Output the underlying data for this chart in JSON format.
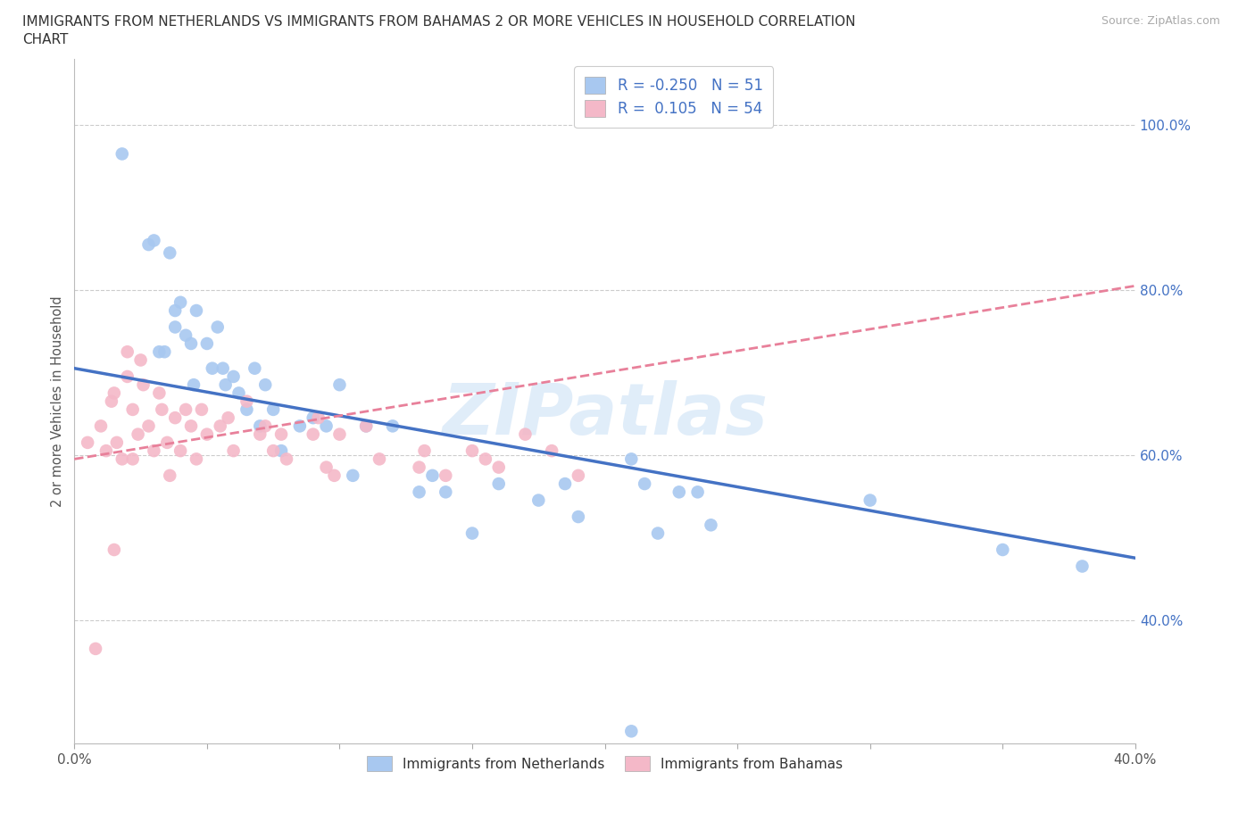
{
  "title_line1": "IMMIGRANTS FROM NETHERLANDS VS IMMIGRANTS FROM BAHAMAS 2 OR MORE VEHICLES IN HOUSEHOLD CORRELATION",
  "title_line2": "CHART",
  "source": "Source: ZipAtlas.com",
  "ylabel": "2 or more Vehicles in Household",
  "watermark": "ZIPatlas",
  "legend_netherlands": "Immigrants from Netherlands",
  "legend_bahamas": "Immigrants from Bahamas",
  "R_netherlands": -0.25,
  "N_netherlands": 51,
  "R_bahamas": 0.105,
  "N_bahamas": 54,
  "color_netherlands": "#A8C8F0",
  "color_bahamas": "#F4B8C8",
  "line_netherlands": "#4472C4",
  "line_bahamas": "#E8809A",
  "x_min": 0.0,
  "x_max": 0.4,
  "y_min": 0.25,
  "y_max": 1.08,
  "nl_line_x0": 0.0,
  "nl_line_y0": 0.705,
  "nl_line_x1": 0.4,
  "nl_line_y1": 0.475,
  "bh_line_x0": 0.0,
  "bh_line_y0": 0.595,
  "bh_line_x1": 0.4,
  "bh_line_y1": 0.805,
  "netherlands_x": [
    0.018,
    0.028,
    0.03,
    0.032,
    0.034,
    0.036,
    0.038,
    0.038,
    0.04,
    0.042,
    0.044,
    0.045,
    0.046,
    0.05,
    0.052,
    0.054,
    0.056,
    0.057,
    0.06,
    0.062,
    0.065,
    0.068,
    0.07,
    0.072,
    0.075,
    0.078,
    0.085,
    0.09,
    0.095,
    0.1,
    0.105,
    0.11,
    0.12,
    0.13,
    0.135,
    0.14,
    0.15,
    0.16,
    0.175,
    0.185,
    0.19,
    0.21,
    0.215,
    0.22,
    0.228,
    0.235,
    0.24,
    0.3,
    0.35,
    0.38,
    0.21
  ],
  "netherlands_y": [
    0.965,
    0.855,
    0.86,
    0.725,
    0.725,
    0.845,
    0.775,
    0.755,
    0.785,
    0.745,
    0.735,
    0.685,
    0.775,
    0.735,
    0.705,
    0.755,
    0.705,
    0.685,
    0.695,
    0.675,
    0.655,
    0.705,
    0.635,
    0.685,
    0.655,
    0.605,
    0.635,
    0.645,
    0.635,
    0.685,
    0.575,
    0.635,
    0.635,
    0.555,
    0.575,
    0.555,
    0.505,
    0.565,
    0.545,
    0.565,
    0.525,
    0.595,
    0.565,
    0.505,
    0.555,
    0.555,
    0.515,
    0.545,
    0.485,
    0.465,
    0.265
  ],
  "bahamas_x": [
    0.005,
    0.008,
    0.01,
    0.012,
    0.014,
    0.015,
    0.016,
    0.018,
    0.02,
    0.02,
    0.022,
    0.024,
    0.025,
    0.026,
    0.028,
    0.03,
    0.032,
    0.033,
    0.035,
    0.036,
    0.038,
    0.04,
    0.042,
    0.044,
    0.046,
    0.048,
    0.05,
    0.055,
    0.058,
    0.06,
    0.065,
    0.07,
    0.072,
    0.075,
    0.078,
    0.08,
    0.09,
    0.092,
    0.095,
    0.098,
    0.1,
    0.11,
    0.115,
    0.13,
    0.132,
    0.14,
    0.15,
    0.155,
    0.16,
    0.17,
    0.18,
    0.19,
    0.022,
    0.015
  ],
  "bahamas_y": [
    0.615,
    0.365,
    0.635,
    0.605,
    0.665,
    0.675,
    0.615,
    0.595,
    0.725,
    0.695,
    0.655,
    0.625,
    0.715,
    0.685,
    0.635,
    0.605,
    0.675,
    0.655,
    0.615,
    0.575,
    0.645,
    0.605,
    0.655,
    0.635,
    0.595,
    0.655,
    0.625,
    0.635,
    0.645,
    0.605,
    0.665,
    0.625,
    0.635,
    0.605,
    0.625,
    0.595,
    0.625,
    0.645,
    0.585,
    0.575,
    0.625,
    0.635,
    0.595,
    0.585,
    0.605,
    0.575,
    0.605,
    0.595,
    0.585,
    0.625,
    0.605,
    0.575,
    0.595,
    0.485
  ]
}
